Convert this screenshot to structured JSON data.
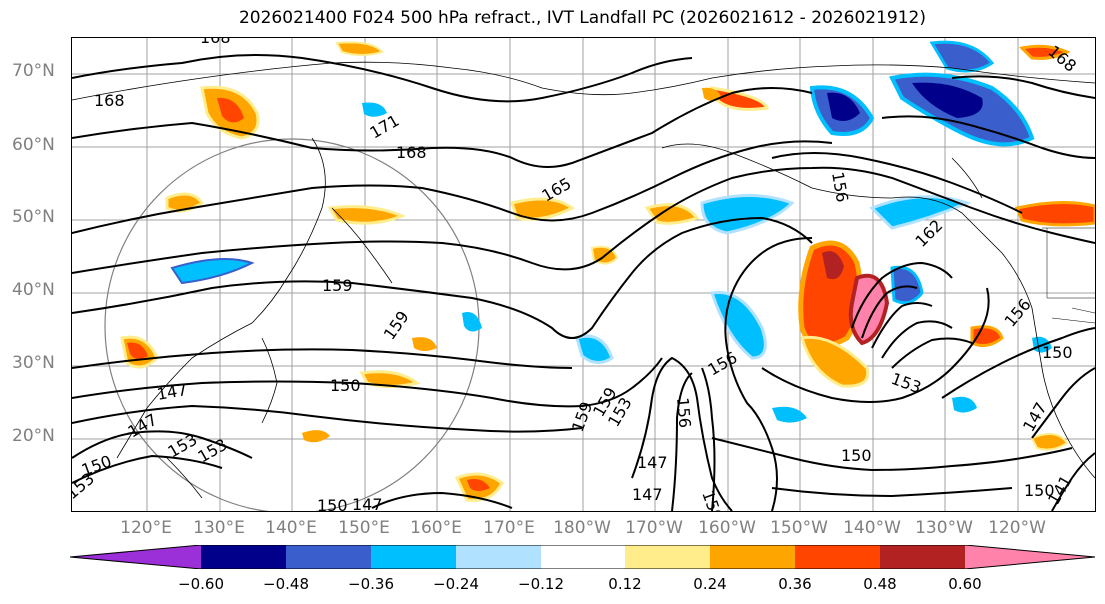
{
  "title": "2026021400 F024 500 hPa refract., IVT Landfall PC (2026021612 - 2026021912)",
  "lat_labels": [
    "70°N",
    "60°N",
    "50°N",
    "40°N",
    "30°N",
    "20°N"
  ],
  "lon_labels": [
    "120°E",
    "130°E",
    "140°E",
    "150°E",
    "160°E",
    "170°E",
    "180°W",
    "170°W",
    "160°W",
    "150°W",
    "140°W",
    "130°W",
    "120°W"
  ],
  "contour_labels": [
    "168",
    "168",
    "171",
    "168",
    "165",
    "159",
    "159",
    "159",
    "162",
    "156",
    "156",
    "156",
    "150",
    "150",
    "153",
    "147",
    "147",
    "147",
    "147",
    "147",
    "153",
    "153",
    "150",
    "150",
    "159",
    "153",
    "156",
    "150",
    "147",
    "150",
    "141",
    "153",
    "150",
    "168"
  ],
  "colorbar": {
    "colors": [
      "#9b30d9",
      "#00008b",
      "#3a5fcd",
      "#00bfff",
      "#b0e2ff",
      "#ffffff",
      "#ffec8b",
      "#ffa500",
      "#ff4500",
      "#b22222",
      "#ff82ab"
    ],
    "tick_labels": [
      "−0.60",
      "−0.48",
      "−0.36",
      "−0.24",
      "−0.12",
      "0.12",
      "0.24",
      "0.36",
      "0.48",
      "0.60"
    ]
  },
  "chart_data": {
    "type": "map",
    "title": "2026021400 F024 500 hPa refract., IVT Landfall PC (2026021612 - 2026021912)",
    "field": "500 hPa refractivity (contours) and IVT landfall principal component (shading)",
    "lat_range": [
      10,
      75
    ],
    "lon_range": [
      112,
      250
    ],
    "contour_levels": [
      141,
      147,
      150,
      153,
      156,
      159,
      162,
      165,
      168,
      171
    ],
    "shading_levels": [
      -0.6,
      -0.48,
      -0.36,
      -0.24,
      -0.12,
      0.12,
      0.24,
      0.36,
      0.48,
      0.6
    ]
  }
}
